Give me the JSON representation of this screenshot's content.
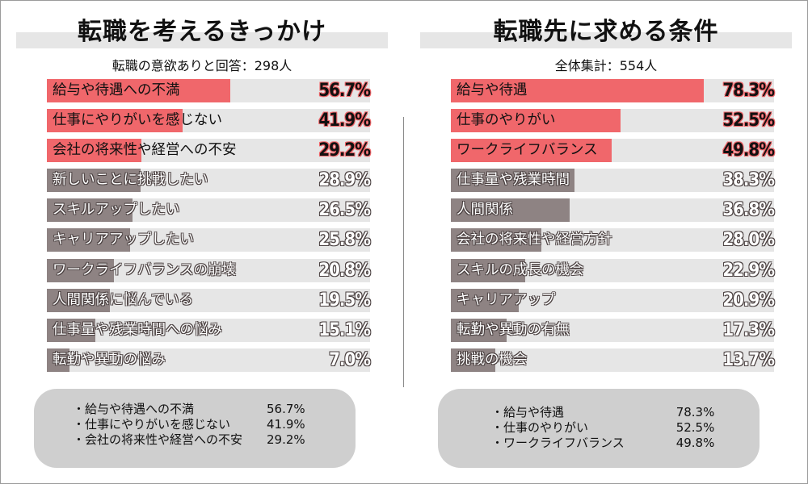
{
  "colors": {
    "highlight": "#f0676b",
    "other": "#8e8383",
    "track": "#e6e6e6",
    "summary_bg": "#cfcfcf"
  },
  "chart_data": [
    {
      "type": "bar",
      "title": "転職を考えるきっかけ",
      "subtitle": "転職の意欲ありと回答：298人",
      "categories": [
        "給与や待遇への不満",
        "仕事にやりがいを感じない",
        "会社の将来性や経営への不安",
        "新しいことに挑戦したい",
        "スキルアップしたい",
        "キャリアアップしたい",
        "ワークライフバランスの崩壊",
        "人間関係に悩んでいる",
        "仕事量や残業時間への悩み",
        "転勤や異動の悩み"
      ],
      "values": [
        56.7,
        41.9,
        29.2,
        28.9,
        26.5,
        25.8,
        20.8,
        19.5,
        15.1,
        7.0
      ],
      "labels": [
        "56.7%",
        "41.9%",
        "29.2%",
        "28.9%",
        "26.5%",
        "25.8%",
        "20.8%",
        "19.5%",
        "15.1%",
        "7.0%"
      ],
      "highlight_count": 3,
      "xlim": [
        0,
        100
      ],
      "summary": [
        {
          "item": "・給与や待遇への不満",
          "value": "56.7%"
        },
        {
          "item": "・仕事にやりがいを感じない",
          "value": "41.9%"
        },
        {
          "item": "・会社の将来性や経営への不安",
          "value": "29.2%"
        }
      ]
    },
    {
      "type": "bar",
      "title": "転職先に求める条件",
      "subtitle": "全体集計：554人",
      "categories": [
        "給与や待遇",
        "仕事のやりがい",
        "ワークライフバランス",
        "仕事量や残業時間",
        "人間関係",
        "会社の将来性や経営方針",
        "スキルの成長の機会",
        "キャリアアップ",
        "転勤や異動の有無",
        "挑戦の機会"
      ],
      "values": [
        78.3,
        52.5,
        49.8,
        38.3,
        36.8,
        28.0,
        22.9,
        20.9,
        17.3,
        13.7
      ],
      "labels": [
        "78.3%",
        "52.5%",
        "49.8%",
        "38.3%",
        "36.8%",
        "28.0%",
        "22.9%",
        "20.9%",
        "17.3%",
        "13.7%"
      ],
      "highlight_count": 3,
      "xlim": [
        0,
        100
      ],
      "summary": [
        {
          "item": "・給与や待遇",
          "value": "78.3%"
        },
        {
          "item": "・仕事のやりがい",
          "value": "52.5%"
        },
        {
          "item": "・ワークライフバランス",
          "value": "49.8%"
        }
      ]
    }
  ]
}
